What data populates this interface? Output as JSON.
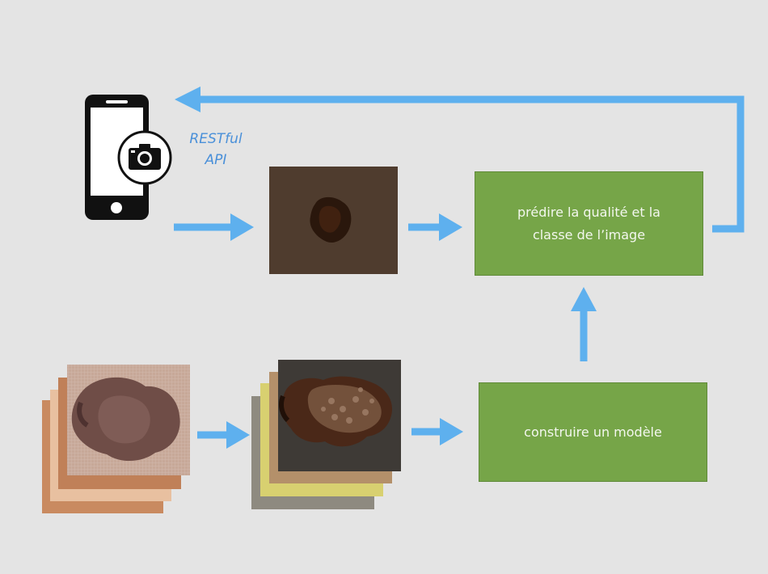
{
  "api": {
    "line1": "RESTful",
    "line2": "API"
  },
  "boxes": {
    "predict": "prédire la qualité et la classe de l’image",
    "build": "construire un modèle"
  },
  "colors": {
    "background": "#e4e4e4",
    "arrow": "#5eb0ee",
    "box": "#76a548",
    "label": "#4a90d9"
  },
  "icons": {
    "phone": "smartphone-icon",
    "camera": "camera-icon"
  }
}
